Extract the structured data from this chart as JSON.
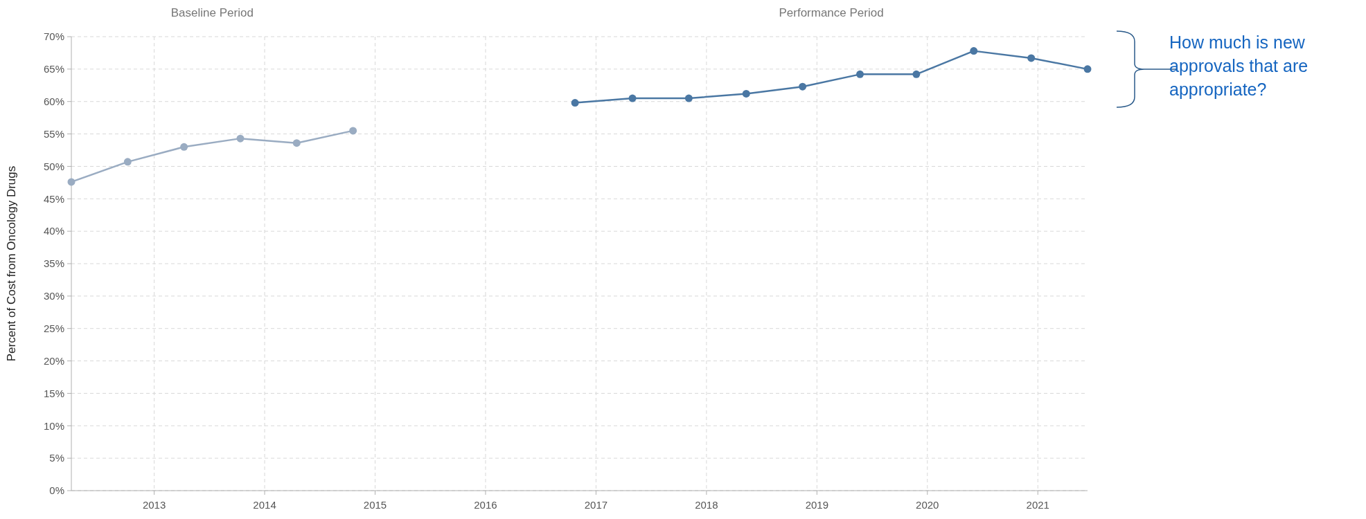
{
  "chart_data": {
    "type": "line",
    "ylabel": "Percent of Cost from Oncology Drugs",
    "series": [
      {
        "color": "#9aacc2",
        "x": [
          2012.25,
          2012.76,
          2013.27,
          2013.78,
          2014.29,
          2014.8
        ],
        "values": [
          47.6,
          50.7,
          53.0,
          54.3,
          53.6,
          55.5
        ]
      },
      {
        "color": "#4a77a3",
        "x": [
          2016.81,
          2017.33,
          2017.84,
          2018.36,
          2018.87,
          2019.39,
          2019.9,
          2020.42,
          2020.94,
          2021.45
        ],
        "values": [
          59.8,
          60.5,
          60.5,
          61.2,
          62.3,
          64.2,
          64.2,
          67.8,
          66.7,
          65.0
        ]
      }
    ],
    "xlim": [
      2012.25,
      2021.45
    ],
    "xticks": [
      2013,
      2014,
      2015,
      2016,
      2017,
      2018,
      2019,
      2020,
      2021
    ],
    "ylim": [
      0,
      70
    ],
    "yticks": [
      {
        "value": 0,
        "label": "0%"
      },
      {
        "value": 5,
        "label": "5%"
      },
      {
        "value": 10,
        "label": "10%"
      },
      {
        "value": 15,
        "label": "15%"
      },
      {
        "value": 20,
        "label": "20%"
      },
      {
        "value": 25,
        "label": "25%"
      },
      {
        "value": 30,
        "label": "30%"
      },
      {
        "value": 35,
        "label": "35%"
      },
      {
        "value": 40,
        "label": "40%"
      },
      {
        "value": 45,
        "label": "45%"
      },
      {
        "value": 50,
        "label": "50%"
      },
      {
        "value": 55,
        "label": "55%"
      },
      {
        "value": 60,
        "label": "60%"
      },
      {
        "value": 65,
        "label": "65%"
      },
      {
        "value": 70,
        "label": "70%"
      }
    ],
    "annotations": [
      "Baseline Period",
      "Performance Period",
      "How much is new approvals that are appropriate?"
    ],
    "grid": true,
    "marker": "circle",
    "line_style": "solid"
  }
}
